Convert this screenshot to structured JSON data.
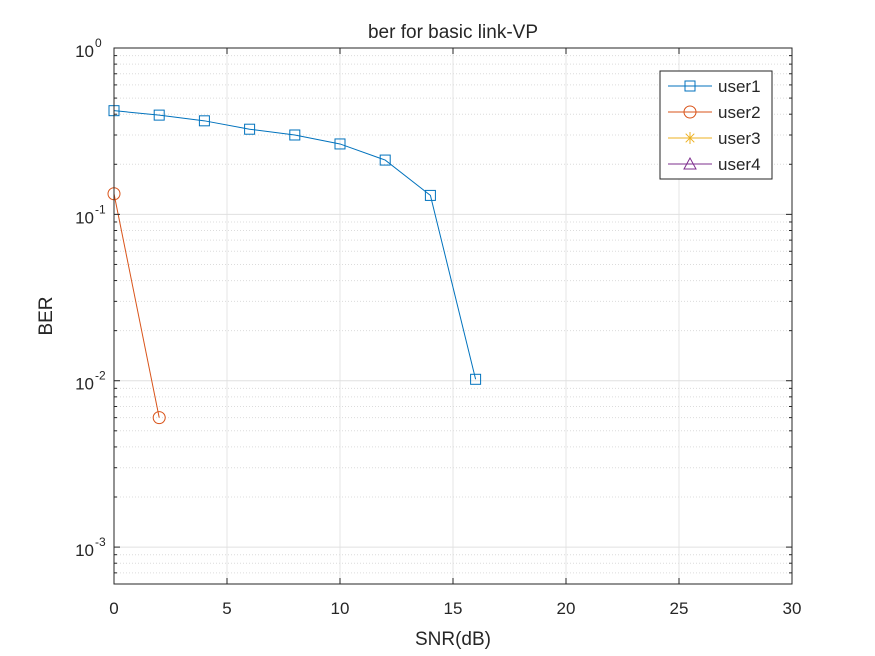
{
  "chart_data": {
    "type": "line",
    "title": "ber for basic link-VP",
    "xlabel": "SNR(dB)",
    "ylabel": "BER",
    "xlim": [
      0,
      30
    ],
    "ylim": [
      0.0006,
      1
    ],
    "yscale": "log",
    "grid": true,
    "legend_position": "top-right",
    "x_ticks": [
      {
        "value": 0,
        "label": "0"
      },
      {
        "value": 5,
        "label": "5"
      },
      {
        "value": 10,
        "label": "10"
      },
      {
        "value": 15,
        "label": "15"
      },
      {
        "value": 20,
        "label": "20"
      },
      {
        "value": 25,
        "label": "25"
      },
      {
        "value": 30,
        "label": "30"
      }
    ],
    "y_ticks": [
      {
        "value": 1,
        "base": "10",
        "exp": "0"
      },
      {
        "value": 0.1,
        "base": "10",
        "exp": "-1"
      },
      {
        "value": 0.01,
        "base": "10",
        "exp": "-2"
      },
      {
        "value": 0.001,
        "base": "10",
        "exp": "-3"
      }
    ],
    "series": [
      {
        "name": "user1",
        "color": "#0072BD",
        "marker": "square",
        "x": [
          0,
          2,
          4,
          6,
          8,
          10,
          12,
          14,
          16
        ],
        "y": [
          0.42,
          0.395,
          0.365,
          0.325,
          0.3,
          0.265,
          0.212,
          0.13,
          0.0102
        ]
      },
      {
        "name": "user2",
        "color": "#D95319",
        "marker": "circle",
        "x": [
          0,
          2
        ],
        "y": [
          0.133,
          0.006
        ]
      },
      {
        "name": "user3",
        "color": "#EDB120",
        "marker": "asterisk",
        "x": [],
        "y": []
      },
      {
        "name": "user4",
        "color": "#7E2F8E",
        "marker": "triangle",
        "x": [],
        "y": []
      }
    ]
  }
}
